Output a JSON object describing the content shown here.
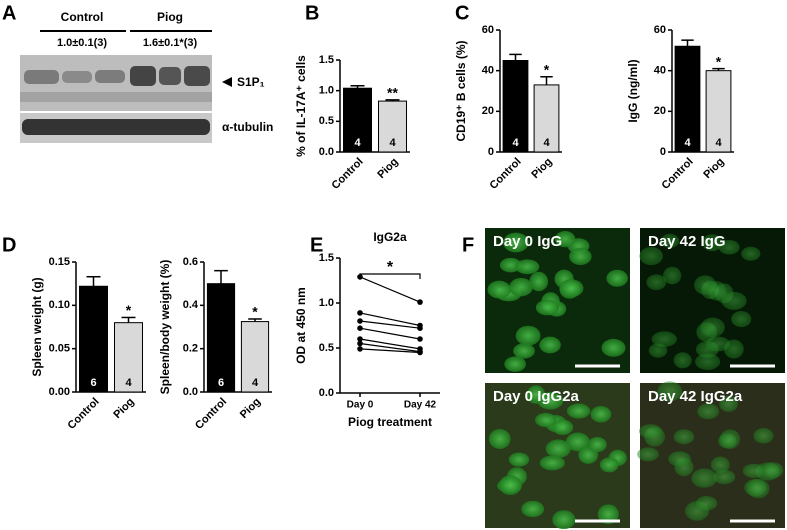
{
  "panel_labels": [
    "A",
    "B",
    "C",
    "D",
    "E",
    "F"
  ],
  "blot": {
    "groups": [
      "Control",
      "Piog"
    ],
    "ratios": [
      "1.0±0.1(3)",
      "1.6±0.1*(3)"
    ],
    "bands": [
      "S1P₁",
      "α-tubulin"
    ]
  },
  "chart_data": [
    {
      "type": "bar",
      "y_label": "% of IL-17A⁺ cells",
      "categories": [
        "Control",
        "Piog"
      ],
      "values": [
        1.04,
        0.83
      ],
      "errors": [
        0.04,
        0.02
      ],
      "n": [
        "4",
        "4"
      ],
      "colors": [
        "#000000",
        "#d9d9d9"
      ],
      "annotation": "**",
      "ylim": [
        0,
        1.5
      ],
      "yticks": [
        {
          "value": 0,
          "label": "0.0"
        },
        {
          "value": 0.5,
          "label": "0.5"
        },
        {
          "value": 1,
          "label": "1.0"
        },
        {
          "value": 1.5,
          "label": "1.5"
        }
      ]
    },
    {
      "type": "bar",
      "y_label": "CD19⁺ B cells (%)",
      "categories": [
        "Control",
        "Piog"
      ],
      "values": [
        45,
        33
      ],
      "errors": [
        3,
        4
      ],
      "n": [
        "4",
        "4"
      ],
      "colors": [
        "#000000",
        "#d9d9d9"
      ],
      "annotation": "*",
      "ylim": [
        0,
        60
      ],
      "yticks": [
        0,
        20,
        40,
        60
      ]
    },
    {
      "type": "bar",
      "y_label": "IgG (ng/ml)",
      "categories": [
        "Control",
        "Piog"
      ],
      "values": [
        52,
        40
      ],
      "errors": [
        3,
        1
      ],
      "n": [
        "4",
        "4"
      ],
      "colors": [
        "#000000",
        "#d9d9d9"
      ],
      "annotation": "*",
      "ylim": [
        0,
        60
      ],
      "yticks": [
        0,
        20,
        40,
        60
      ]
    },
    {
      "type": "bar",
      "y_label": "Spleen weight (g)",
      "categories": [
        "Control",
        "Piog"
      ],
      "values": [
        0.122,
        0.08
      ],
      "errors": [
        0.011,
        0.006
      ],
      "n": [
        "6",
        "4"
      ],
      "colors": [
        "#000000",
        "#d9d9d9"
      ],
      "annotation": "*",
      "ylim": [
        0,
        0.15
      ],
      "yticks": [
        {
          "value": 0,
          "label": "0.00"
        },
        {
          "value": 0.05,
          "label": "0.05"
        },
        {
          "value": 0.1,
          "label": "0.10"
        },
        {
          "value": 0.15,
          "label": "0.15"
        }
      ]
    },
    {
      "type": "bar",
      "y_label": "Spleen/body weight (%)",
      "categories": [
        "Control",
        "Piog"
      ],
      "values": [
        0.5,
        0.325
      ],
      "errors": [
        0.06,
        0.012
      ],
      "n": [
        "6",
        "4"
      ],
      "colors": [
        "#000000",
        "#d9d9d9"
      ],
      "annotation": "*",
      "ylim": [
        0,
        0.6
      ],
      "yticks": [
        {
          "value": 0,
          "label": "0.0"
        },
        {
          "value": 0.2,
          "label": "0.2"
        },
        {
          "value": 0.4,
          "label": "0.4"
        },
        {
          "value": 0.6,
          "label": "0.6"
        }
      ]
    },
    {
      "type": "line",
      "title": "IgG2a",
      "y_label": "OD at 450 nm",
      "x_label": "Piog treatment",
      "categories": [
        "Day 0",
        "Day 42"
      ],
      "annotation": "*",
      "color": "#000000",
      "ylim": [
        0,
        1.5
      ],
      "yticks": [
        {
          "value": 0,
          "label": "0.0"
        },
        {
          "value": 0.5,
          "label": "0.5"
        },
        {
          "value": 1,
          "label": "1.0"
        },
        {
          "value": 1.5,
          "label": "1.5"
        }
      ],
      "series": [
        {
          "values": [
            1.29,
            1.01
          ]
        },
        {
          "values": [
            0.89,
            0.75
          ]
        },
        {
          "values": [
            0.8,
            0.72
          ]
        },
        {
          "values": [
            0.72,
            0.6
          ]
        },
        {
          "values": [
            0.6,
            0.49
          ]
        },
        {
          "values": [
            0.55,
            0.46
          ]
        },
        {
          "values": [
            0.49,
            0.45
          ]
        }
      ]
    }
  ],
  "micrographs": {
    "labels": [
      "Day 0 IgG",
      "Day 42 IgG",
      "Day 0 IgG2a",
      "Day 42 IgG2a"
    ]
  }
}
